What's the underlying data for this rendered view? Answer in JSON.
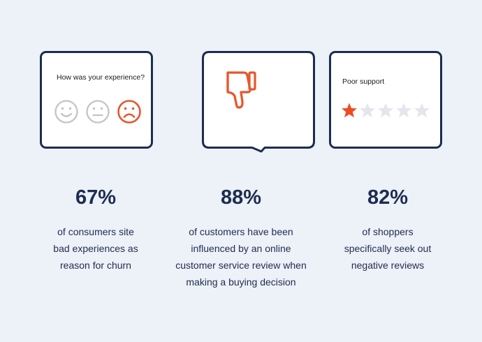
{
  "card_experience": {
    "question": "How was your experience?",
    "faces": [
      {
        "icon": "happy-face-icon",
        "color": "#c4c4c4",
        "selected": false
      },
      {
        "icon": "neutral-face-icon",
        "color": "#c4c4c4",
        "selected": false
      },
      {
        "icon": "sad-face-icon",
        "color": "#e8562a",
        "selected": true
      }
    ]
  },
  "card_review": {
    "icon": "thumbs-down-icon",
    "icon_color": "#e8562a"
  },
  "card_rating": {
    "label": "Poor support",
    "rating": 1,
    "max_rating": 5,
    "filled_color": "#ee4b22",
    "empty_color": "#e3e6ec"
  },
  "stats": [
    {
      "value": "67%",
      "lines": [
        "of consumers site",
        "bad experiences as",
        "reason for churn"
      ]
    },
    {
      "value": "88%",
      "lines": [
        "of customers have been",
        "influenced by an online",
        "customer service review when",
        "making a buying decision"
      ]
    },
    {
      "value": "82%",
      "lines": [
        "of shoppers",
        "specifically seek out",
        "negative reviews"
      ]
    }
  ],
  "colors": {
    "background": "#edf1f8",
    "navy": "#1d2d4f",
    "accent": "#e8562a"
  }
}
